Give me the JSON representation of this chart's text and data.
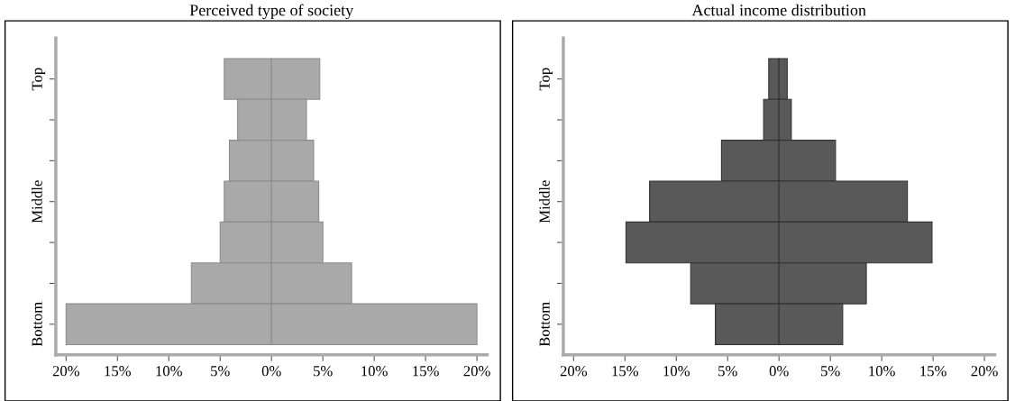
{
  "chart_data": [
    {
      "type": "bar",
      "title": "Perceived type of society",
      "orientation": "horizontal",
      "stacked": true,
      "categories": [
        "Top",
        null,
        null,
        "Middle",
        null,
        null,
        "Bottom"
      ],
      "series": [
        {
          "color": "#a9a9a9",
          "values": [
            -4.6,
            -3.3,
            -4.1,
            -4.6,
            -5.0,
            -7.8,
            -20.0
          ]
        },
        {
          "color": "#a9a9a9",
          "values": [
            4.7,
            3.4,
            4.1,
            4.6,
            5.0,
            7.8,
            20.0
          ]
        }
      ],
      "xlim": [
        -21,
        21
      ],
      "xticks": [
        {
          "value": -20,
          "label": "20%"
        },
        {
          "value": -15,
          "label": "15%"
        },
        {
          "value": -10,
          "label": "10%"
        },
        {
          "value": -5,
          "label": "5%"
        },
        {
          "value": 0,
          "label": "0%"
        },
        {
          "value": 5,
          "label": "5%"
        },
        {
          "value": 10,
          "label": "10%"
        },
        {
          "value": 15,
          "label": "15%"
        },
        {
          "value": 20,
          "label": "20%"
        }
      ],
      "grid": false,
      "legend": false
    },
    {
      "type": "bar",
      "title": "Actual income distribution",
      "orientation": "horizontal",
      "stacked": true,
      "categories": [
        "Top",
        null,
        null,
        "Middle",
        null,
        null,
        "Bottom"
      ],
      "series": [
        {
          "color": "#595959",
          "values": [
            -1.0,
            -1.5,
            -5.6,
            -12.6,
            -14.9,
            -8.6,
            -6.2
          ]
        },
        {
          "color": "#595959",
          "values": [
            0.8,
            1.2,
            5.5,
            12.5,
            14.9,
            8.5,
            6.2
          ]
        }
      ],
      "xlim": [
        -21,
        21
      ],
      "xticks": [
        {
          "value": -20,
          "label": "20%"
        },
        {
          "value": -15,
          "label": "15%"
        },
        {
          "value": -10,
          "label": "10%"
        },
        {
          "value": -5,
          "label": "5%"
        },
        {
          "value": 0,
          "label": "0%"
        },
        {
          "value": 5,
          "label": "5%"
        },
        {
          "value": 10,
          "label": "10%"
        },
        {
          "value": 15,
          "label": "15%"
        },
        {
          "value": 20,
          "label": "20%"
        }
      ],
      "grid": false,
      "legend": false
    }
  ]
}
